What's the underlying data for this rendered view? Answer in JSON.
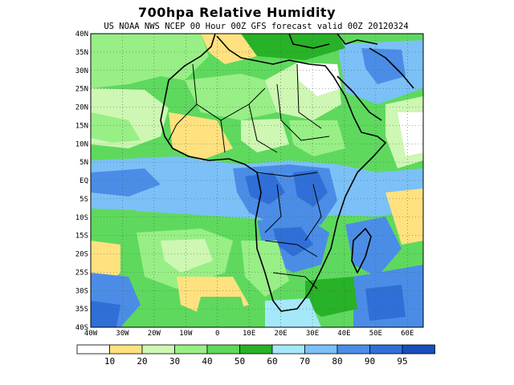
{
  "title": "700hpa Relative Humidity",
  "subtitle": "US NOAA NWS NCEP 00 Hour 00Z GFS forecast valid 00Z 20120324",
  "map": {
    "lat_labels": [
      "40N",
      "35N",
      "30N",
      "25N",
      "20N",
      "15N",
      "10N",
      "5N",
      "EQ",
      "5S",
      "10S",
      "15S",
      "20S",
      "25S",
      "30S",
      "35S",
      "40S"
    ],
    "lon_labels": [
      "40W",
      "30W",
      "20W",
      "10W",
      "0",
      "10E",
      "20E",
      "30E",
      "40E",
      "50E",
      "60E"
    ],
    "extent": {
      "lon": [
        -40,
        65
      ],
      "lat": [
        -40,
        40
      ]
    },
    "gridlines": true,
    "fill_color_order": [
      "#ffffff",
      "#ffe27f",
      "#cdf7b2",
      "#98ef86",
      "#5ed95e",
      "#27b227",
      "#a5e8fa",
      "#7bc1f7",
      "#4b8de6",
      "#2f6fd7",
      "#164fbc"
    ]
  },
  "legend": {
    "colors": [
      "#ffffff",
      "#ffe27f",
      "#cdf7b2",
      "#98ef86",
      "#5ed95e",
      "#27b227",
      "#a5e8fa",
      "#7bc1f7",
      "#4b8de6",
      "#2f6fd7",
      "#164fbc"
    ],
    "labels": [
      "10",
      "20",
      "30",
      "40",
      "50",
      "60",
      "70",
      "80",
      "90",
      "95"
    ]
  }
}
